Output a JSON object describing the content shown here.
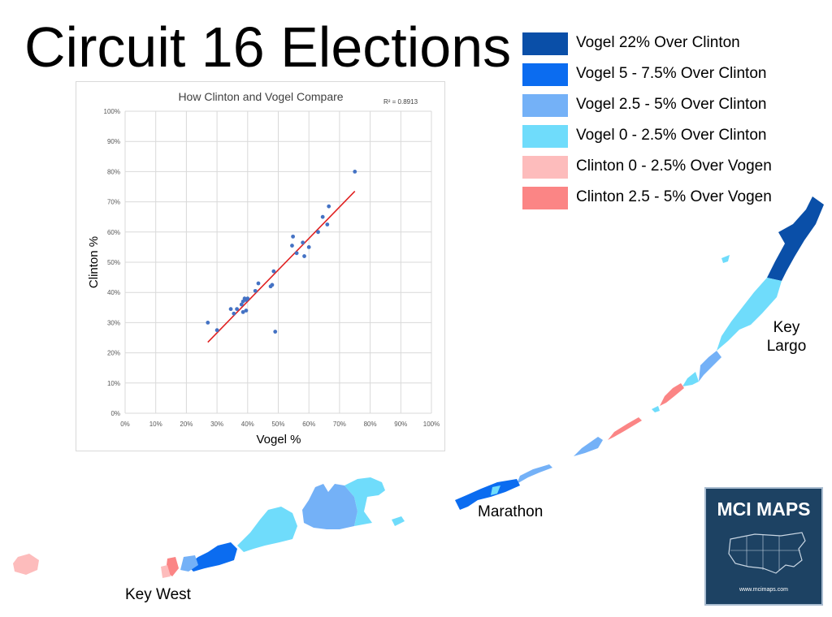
{
  "title": "Circuit 16 Elections",
  "legend": [
    {
      "label": "Vogel 22% Over Clinton",
      "color": "#0a4fa8"
    },
    {
      "label": "Vogel 5 - 7.5% Over Clinton",
      "color": "#0b6cf0"
    },
    {
      "label": "Vogel 2.5 - 5% Over Clinton",
      "color": "#74b1f7"
    },
    {
      "label": "Vogel 0 - 2.5% Over Clinton",
      "color": "#6fdcfb"
    },
    {
      "label": "Clinton 0 - 2.5% Over Vogen",
      "color": "#fdbcbc"
    },
    {
      "label": "Clinton 2.5 - 5% Over Vogen",
      "color": "#fb8585"
    }
  ],
  "places": {
    "key_largo": "Key\nLargo",
    "marathon": "Marathon",
    "key_west": "Key West"
  },
  "logo": {
    "title": "MCI MAPS",
    "url": "www.mcimaps.com"
  },
  "chart_data": {
    "type": "scatter",
    "title": "How Clinton and Vogel  Compare",
    "r_squared_label": "R² = 0.8913",
    "xlabel": "Vogel  %",
    "ylabel": "Clinton %",
    "xlim": [
      0,
      100
    ],
    "ylim": [
      0,
      100
    ],
    "xticks": [
      "0%",
      "10%",
      "20%",
      "30%",
      "40%",
      "50%",
      "60%",
      "70%",
      "80%",
      "90%",
      "100%"
    ],
    "yticks": [
      "0%",
      "10%",
      "20%",
      "30%",
      "40%",
      "50%",
      "60%",
      "70%",
      "80%",
      "90%",
      "100%"
    ],
    "grid": true,
    "point_color": "#4472c4",
    "trendline_color": "#e02020",
    "trendline": {
      "x": [
        27,
        75
      ],
      "y": [
        23.5,
        73.5
      ]
    },
    "points": [
      {
        "x": 27,
        "y": 30
      },
      {
        "x": 30,
        "y": 27.5
      },
      {
        "x": 34.5,
        "y": 34.5
      },
      {
        "x": 35.5,
        "y": 33
      },
      {
        "x": 36.5,
        "y": 34.5
      },
      {
        "x": 38,
        "y": 36
      },
      {
        "x": 38.5,
        "y": 37
      },
      {
        "x": 39,
        "y": 38
      },
      {
        "x": 39.5,
        "y": 37.5
      },
      {
        "x": 40,
        "y": 38
      },
      {
        "x": 38.5,
        "y": 33.5
      },
      {
        "x": 39.5,
        "y": 34
      },
      {
        "x": 42.5,
        "y": 40.5
      },
      {
        "x": 43.5,
        "y": 43
      },
      {
        "x": 47.5,
        "y": 42
      },
      {
        "x": 48,
        "y": 42.5
      },
      {
        "x": 48.5,
        "y": 47
      },
      {
        "x": 49,
        "y": 27
      },
      {
        "x": 54.5,
        "y": 55.5
      },
      {
        "x": 54.8,
        "y": 58.5
      },
      {
        "x": 56,
        "y": 53
      },
      {
        "x": 58,
        "y": 56.5
      },
      {
        "x": 58.5,
        "y": 52
      },
      {
        "x": 60,
        "y": 55
      },
      {
        "x": 63,
        "y": 60
      },
      {
        "x": 64.5,
        "y": 65
      },
      {
        "x": 66,
        "y": 62.5
      },
      {
        "x": 66.5,
        "y": 68.5
      },
      {
        "x": 75,
        "y": 80
      }
    ]
  }
}
